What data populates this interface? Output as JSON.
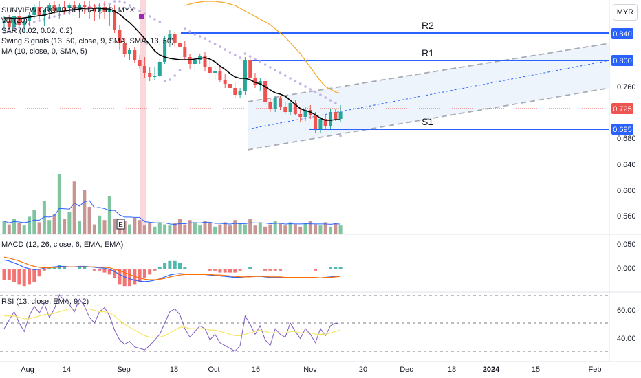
{
  "currency_button": "MYR",
  "legend": {
    "title": "SUNVIEW GROUP BERHAD, 1D, MYX",
    "vol": "Vol (20)",
    "sar": "SAR (0.02, 0.02, 0.2)",
    "swing": "Swing Signals (13, 50, close, 9, SMA, SMA, 13, 50)",
    "ma": "MA (10, close, 0, SMA, 5)",
    "macd": "MACD (12, 26, close, 6, EMA, EMA)",
    "rsi": "RSI (13, close, EMA, 9, 2)"
  },
  "levels": {
    "r2": {
      "label": "R2",
      "value": "0.840"
    },
    "r1": {
      "label": "R1",
      "value": "0.800"
    },
    "s1": {
      "label": "S1",
      "value": "0.695"
    },
    "last": {
      "value": "0.725"
    }
  },
  "price_axis": [
    "0.760",
    "0.680",
    "0.640",
    "0.600",
    "0.560"
  ],
  "macd_axis": [
    "0.050",
    "0.000"
  ],
  "rsi_axis": [
    "60.00",
    "40.00"
  ],
  "earnings_marker": "E",
  "colors": {
    "up": "#26a69a",
    "down": "#ef5350",
    "level": "#2962ff",
    "ma": "#000000",
    "swing": "#f5a623",
    "sar": "#c5b3e6"
  },
  "chart_data": {
    "type": "candlestick",
    "title": "SUNVIEW GROUP BERHAD, 1D, MYX",
    "x_ticks": [
      "Aug",
      "14",
      "Sep",
      "18",
      "Oct",
      "16",
      "Nov",
      "20",
      "Dec",
      "18",
      "2024",
      "15",
      "Feb"
    ],
    "ylim": [
      0.545,
      0.885
    ],
    "candles": [
      [
        0.855,
        0.865,
        0.845,
        0.858
      ],
      [
        0.858,
        0.866,
        0.846,
        0.848
      ],
      [
        0.848,
        0.87,
        0.845,
        0.865
      ],
      [
        0.865,
        0.875,
        0.85,
        0.852
      ],
      [
        0.852,
        0.862,
        0.84,
        0.858
      ],
      [
        0.858,
        0.87,
        0.85,
        0.866
      ],
      [
        0.866,
        0.882,
        0.86,
        0.878
      ],
      [
        0.878,
        0.886,
        0.86,
        0.864
      ],
      [
        0.864,
        0.875,
        0.85,
        0.872
      ],
      [
        0.872,
        0.884,
        0.86,
        0.88
      ],
      [
        0.88,
        0.886,
        0.868,
        0.872
      ],
      [
        0.872,
        0.882,
        0.86,
        0.878
      ],
      [
        0.878,
        0.886,
        0.868,
        0.876
      ],
      [
        0.876,
        0.884,
        0.866,
        0.88
      ],
      [
        0.88,
        0.886,
        0.87,
        0.874
      ],
      [
        0.874,
        0.884,
        0.862,
        0.88
      ],
      [
        0.88,
        0.886,
        0.868,
        0.878
      ],
      [
        0.878,
        0.886,
        0.86,
        0.876
      ],
      [
        0.876,
        0.882,
        0.858,
        0.872
      ],
      [
        0.872,
        0.884,
        0.86,
        0.878
      ],
      [
        0.878,
        0.886,
        0.86,
        0.87
      ],
      [
        0.87,
        0.88,
        0.85,
        0.874
      ],
      [
        0.874,
        0.88,
        0.84,
        0.845
      ],
      [
        0.845,
        0.852,
        0.815,
        0.825
      ],
      [
        0.825,
        0.832,
        0.805,
        0.81
      ],
      [
        0.81,
        0.818,
        0.8,
        0.815
      ],
      [
        0.815,
        0.82,
        0.796,
        0.8
      ],
      [
        0.8,
        0.808,
        0.788,
        0.792
      ],
      [
        0.792,
        0.805,
        0.775,
        0.782
      ],
      [
        0.782,
        0.79,
        0.77,
        0.776
      ],
      [
        0.776,
        0.79,
        0.772,
        0.778
      ],
      [
        0.778,
        0.802,
        0.776,
        0.798
      ],
      [
        0.798,
        0.835,
        0.795,
        0.83
      ],
      [
        0.83,
        0.845,
        0.82,
        0.838
      ],
      [
        0.838,
        0.842,
        0.82,
        0.826
      ],
      [
        0.826,
        0.835,
        0.815,
        0.82
      ],
      [
        0.82,
        0.828,
        0.8,
        0.805
      ],
      [
        0.805,
        0.81,
        0.788,
        0.795
      ],
      [
        0.795,
        0.805,
        0.785,
        0.8
      ],
      [
        0.8,
        0.81,
        0.795,
        0.806
      ],
      [
        0.806,
        0.812,
        0.785,
        0.79
      ],
      [
        0.79,
        0.8,
        0.78,
        0.782
      ],
      [
        0.782,
        0.792,
        0.772,
        0.785
      ],
      [
        0.785,
        0.79,
        0.768,
        0.772
      ],
      [
        0.772,
        0.78,
        0.76,
        0.766
      ],
      [
        0.766,
        0.775,
        0.755,
        0.76
      ],
      [
        0.76,
        0.768,
        0.745,
        0.75
      ],
      [
        0.75,
        0.76,
        0.745,
        0.755
      ],
      [
        0.755,
        0.805,
        0.75,
        0.8
      ],
      [
        0.8,
        0.805,
        0.77,
        0.775
      ],
      [
        0.775,
        0.782,
        0.76,
        0.765
      ],
      [
        0.765,
        0.775,
        0.755,
        0.77
      ],
      [
        0.77,
        0.775,
        0.735,
        0.74
      ],
      [
        0.74,
        0.745,
        0.725,
        0.73
      ],
      [
        0.73,
        0.748,
        0.725,
        0.745
      ],
      [
        0.745,
        0.748,
        0.728,
        0.732
      ],
      [
        0.732,
        0.74,
        0.722,
        0.725
      ],
      [
        0.725,
        0.74,
        0.72,
        0.738
      ],
      [
        0.738,
        0.742,
        0.72,
        0.722
      ],
      [
        0.722,
        0.73,
        0.71,
        0.718
      ],
      [
        0.718,
        0.732,
        0.712,
        0.728
      ],
      [
        0.728,
        0.735,
        0.715,
        0.72
      ],
      [
        0.72,
        0.725,
        0.695,
        0.7
      ],
      [
        0.7,
        0.718,
        0.695,
        0.715
      ],
      [
        0.715,
        0.722,
        0.7,
        0.705
      ],
      [
        0.705,
        0.73,
        0.7,
        0.725
      ],
      [
        0.725,
        0.73,
        0.712,
        0.715
      ],
      [
        0.715,
        0.735,
        0.71,
        0.725
      ]
    ],
    "ma_values": [
      0.862,
      0.862,
      0.861,
      0.861,
      0.862,
      0.863,
      0.864,
      0.865,
      0.866,
      0.868,
      0.87,
      0.871,
      0.872,
      0.873,
      0.874,
      0.875,
      0.876,
      0.876,
      0.876,
      0.876,
      0.875,
      0.875,
      0.872,
      0.867,
      0.861,
      0.855,
      0.848,
      0.84,
      0.832,
      0.823,
      0.814,
      0.808,
      0.805,
      0.803,
      0.802,
      0.801,
      0.801,
      0.801,
      0.802,
      0.803,
      0.804,
      0.802,
      0.798,
      0.792,
      0.787,
      0.781,
      0.776,
      0.774,
      0.774,
      0.772,
      0.768,
      0.766,
      0.762,
      0.757,
      0.753,
      0.751,
      0.748,
      0.742,
      0.736,
      0.73,
      0.727,
      0.725,
      0.721,
      0.716,
      0.713,
      0.713,
      0.714,
      0.714
    ],
    "swing_line": [
      0.88,
      0.882,
      0.884,
      0.885,
      0.886,
      0.886,
      0.886,
      0.885,
      0.884,
      0.882,
      0.88,
      0.876,
      0.872,
      0.868,
      0.864,
      0.86,
      0.856,
      0.852,
      0.846,
      0.84,
      0.834,
      0.826,
      0.818,
      0.81,
      0.8,
      0.79,
      0.78,
      0.77,
      0.762,
      0.758,
      0.754,
      0.752
    ],
    "sar_values": [
      0.84,
      0.842,
      0.845,
      0.848,
      0.85,
      0.853,
      0.856,
      0.858,
      0.86,
      0.862,
      0.864,
      0.866,
      0.868,
      0.87,
      0.872,
      0.874,
      0.876,
      0.878,
      0.879,
      0.88,
      0.881,
      0.882,
      0.886,
      0.886,
      0.884,
      0.88,
      0.876,
      0.872,
      0.868,
      0.864,
      0.86,
      0.856,
      0.77,
      0.772,
      0.778,
      0.786,
      0.846,
      0.842,
      0.838,
      0.835,
      0.832,
      0.828,
      0.824,
      0.82,
      0.816,
      0.812,
      0.808,
      0.804,
      0.81,
      0.806,
      0.802,
      0.798,
      0.794,
      0.79,
      0.786,
      0.782,
      0.778,
      0.774,
      0.77,
      0.766,
      0.762,
      0.758,
      0.754,
      0.75,
      0.746,
      0.742,
      0.738,
      0.69
    ],
    "volume": [
      12,
      9,
      14,
      10,
      8,
      16,
      22,
      11,
      30,
      13,
      18,
      55,
      14,
      20,
      48,
      12,
      40,
      25,
      9,
      17,
      13,
      35,
      14,
      10,
      12,
      9,
      15,
      13,
      8,
      10,
      7,
      11,
      9,
      8,
      10,
      14,
      9,
      13,
      11,
      8,
      12,
      10,
      7,
      9,
      11,
      8,
      13,
      10,
      9,
      14,
      8,
      11,
      7,
      9,
      12,
      10,
      8,
      11,
      9,
      7,
      10,
      12,
      9,
      8,
      11,
      7,
      10,
      8
    ],
    "macd_line": [
      0.018,
      0.016,
      0.012,
      0.008,
      0.003,
      0,
      -0.002,
      -0.001,
      0.001,
      0.003,
      0.004,
      0.005,
      0.005,
      0.004,
      0.004,
      0.005,
      0.005,
      0.004,
      0.003,
      0.002,
      0.001,
      -0.001,
      -0.006,
      -0.012,
      -0.017,
      -0.021,
      -0.024,
      -0.026,
      -0.027,
      -0.026,
      -0.024,
      -0.021,
      -0.017,
      -0.013,
      -0.011,
      -0.01,
      -0.011,
      -0.012,
      -0.012,
      -0.012,
      -0.012,
      -0.013,
      -0.014,
      -0.015,
      -0.016,
      -0.017,
      -0.018,
      -0.018,
      -0.017,
      -0.016,
      -0.016,
      -0.016,
      -0.017,
      -0.018,
      -0.018,
      -0.018,
      -0.018,
      -0.018,
      -0.018,
      -0.018,
      -0.018,
      -0.018,
      -0.019,
      -0.019,
      -0.018,
      -0.017,
      -0.016,
      -0.015
    ],
    "macd_signal": [
      0.024,
      0.022,
      0.019,
      0.016,
      0.012,
      0.008,
      0.005,
      0.003,
      0.002,
      0.002,
      0.003,
      0.003,
      0.004,
      0.004,
      0.004,
      0.004,
      0.004,
      0.004,
      0.004,
      0.003,
      0.003,
      0.002,
      -0.001,
      -0.004,
      -0.008,
      -0.012,
      -0.016,
      -0.019,
      -0.022,
      -0.023,
      -0.023,
      -0.022,
      -0.02,
      -0.017,
      -0.015,
      -0.013,
      -0.012,
      -0.012,
      -0.012,
      -0.012,
      -0.012,
      -0.012,
      -0.013,
      -0.013,
      -0.014,
      -0.015,
      -0.016,
      -0.017,
      -0.017,
      -0.017,
      -0.016,
      -0.016,
      -0.016,
      -0.017,
      -0.017,
      -0.017,
      -0.018,
      -0.018,
      -0.018,
      -0.018,
      -0.018,
      -0.018,
      -0.018,
      -0.019,
      -0.018,
      -0.018,
      -0.017,
      -0.016
    ],
    "rsi_values": [
      46,
      52,
      58,
      50,
      44,
      55,
      62,
      57,
      64,
      54,
      60,
      70,
      66,
      63,
      58,
      67,
      62,
      54,
      50,
      58,
      61,
      55,
      45,
      38,
      35,
      37,
      33,
      32,
      31,
      34,
      38,
      42,
      50,
      58,
      60,
      56,
      46,
      40,
      44,
      48,
      46,
      38,
      42,
      36,
      34,
      32,
      30,
      34,
      55,
      49,
      42,
      48,
      38,
      34,
      46,
      42,
      40,
      50,
      44,
      39,
      46,
      42,
      36,
      46,
      41,
      48,
      50,
      49
    ],
    "rsi_ema": [
      55,
      55,
      55,
      54,
      53,
      53,
      54,
      55,
      56,
      56,
      57,
      58,
      59,
      60,
      60,
      60,
      60,
      60,
      59,
      58,
      58,
      57,
      55,
      52,
      49,
      47,
      45,
      43,
      41,
      40,
      40,
      40,
      41,
      43,
      45,
      47,
      47,
      46,
      46,
      46,
      46,
      45,
      45,
      44,
      43,
      42,
      41,
      41,
      42,
      43,
      44,
      45,
      44,
      43,
      43,
      43,
      43,
      44,
      44,
      43,
      43,
      43,
      42,
      42,
      42,
      43,
      44,
      45
    ],
    "rsi_levels": [
      70,
      50,
      30
    ],
    "trend_channel": {
      "mid": [
        [
          0.76,
          0.7
        ],
        [
          0.8,
          0.8
        ]
      ],
      "upper": [
        [
          0.71,
          0.74
        ],
        [
          0.765,
          0.825
        ]
      ],
      "lower": [
        [
          0.71,
          0.67
        ],
        [
          0.775,
          0.76
        ]
      ]
    }
  }
}
